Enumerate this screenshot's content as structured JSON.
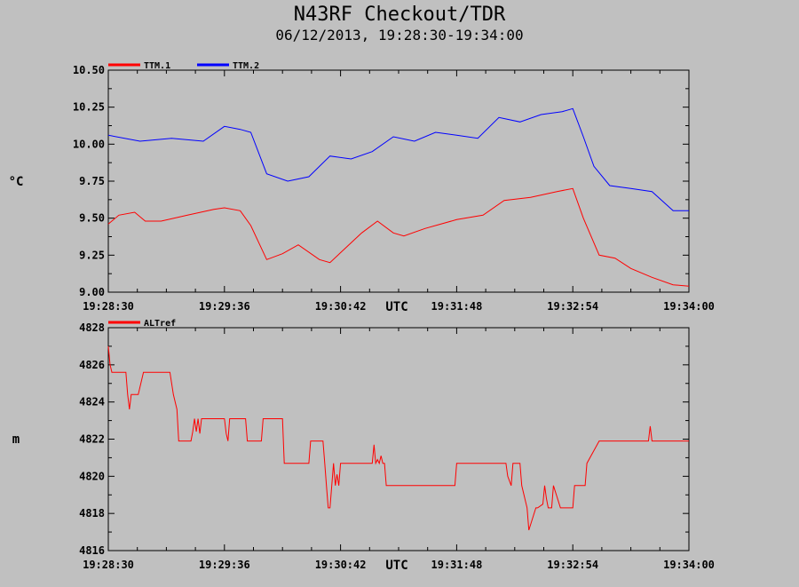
{
  "page": {
    "title": "N43RF Checkout/TDR",
    "subtitle": "06/12/2013, 19:28:30-19:34:00"
  },
  "colors": {
    "background": "#c0c0c0",
    "ttm1": "#ff0000",
    "ttm2": "#0000ff",
    "altref": "#ff0000"
  },
  "chart_data": [
    {
      "type": "line",
      "ylabel": "°C",
      "xlabel": "UTC",
      "ylim": [
        9.0,
        10.5
      ],
      "yticks": [
        "9.00",
        "9.25",
        "9.50",
        "9.75",
        "10.00",
        "10.25",
        "10.50"
      ],
      "xlim": [
        "19:28:30",
        "19:34:00"
      ],
      "xticks": [
        "19:28:30",
        "19:29:36",
        "19:30:42",
        "19:31:48",
        "19:32:54",
        "19:34:00"
      ],
      "legend": "top-left",
      "series": [
        {
          "name": "TTM.1",
          "color": "#ff0000",
          "x": [
            "19:28:30",
            "19:28:36",
            "19:28:45",
            "19:28:51",
            "19:29:00",
            "19:29:15",
            "19:29:30",
            "19:29:36",
            "19:29:45",
            "19:29:51",
            "19:30:00",
            "19:30:09",
            "19:30:18",
            "19:30:30",
            "19:30:36",
            "19:30:45",
            "19:30:54",
            "19:31:03",
            "19:31:12",
            "19:31:18",
            "19:31:30",
            "19:31:48",
            "19:32:03",
            "19:32:15",
            "19:32:30",
            "19:32:45",
            "19:32:54",
            "19:33:00",
            "19:33:09",
            "19:33:18",
            "19:33:27",
            "19:33:39",
            "19:33:51",
            "19:34:00"
          ],
          "values": [
            9.46,
            9.52,
            9.54,
            9.48,
            9.48,
            9.52,
            9.56,
            9.57,
            9.55,
            9.45,
            9.22,
            9.26,
            9.32,
            9.22,
            9.2,
            9.3,
            9.4,
            9.48,
            9.4,
            9.38,
            9.43,
            9.49,
            9.52,
            9.62,
            9.64,
            9.68,
            9.7,
            9.5,
            9.25,
            9.23,
            9.16,
            9.1,
            9.05,
            9.04
          ]
        },
        {
          "name": "TTM.2",
          "color": "#0000ff",
          "x": [
            "19:28:30",
            "19:28:48",
            "19:29:06",
            "19:29:24",
            "19:29:36",
            "19:29:45",
            "19:29:51",
            "19:30:00",
            "19:30:12",
            "19:30:24",
            "19:30:36",
            "19:30:48",
            "19:31:00",
            "19:31:12",
            "19:31:24",
            "19:31:36",
            "19:31:48",
            "19:32:00",
            "19:32:12",
            "19:32:24",
            "19:32:36",
            "19:32:48",
            "19:32:54",
            "19:33:00",
            "19:33:06",
            "19:33:15",
            "19:33:27",
            "19:33:39",
            "19:33:51",
            "19:34:00"
          ],
          "values": [
            10.06,
            10.02,
            10.04,
            10.02,
            10.12,
            10.1,
            10.08,
            9.8,
            9.75,
            9.78,
            9.92,
            9.9,
            9.95,
            10.05,
            10.02,
            10.08,
            10.06,
            10.04,
            10.18,
            10.15,
            10.2,
            10.22,
            10.24,
            10.05,
            9.85,
            9.72,
            9.7,
            9.68,
            9.55,
            9.55
          ]
        }
      ]
    },
    {
      "type": "line",
      "ylabel": "m",
      "xlabel": "UTC",
      "ylim": [
        4816,
        4828
      ],
      "yticks": [
        "4816",
        "4818",
        "4820",
        "4822",
        "4824",
        "4826",
        "4828"
      ],
      "xlim": [
        "19:28:30",
        "19:34:00"
      ],
      "xticks": [
        "19:28:30",
        "19:29:36",
        "19:30:42",
        "19:31:48",
        "19:32:54",
        "19:34:00"
      ],
      "legend": "top-left",
      "series": [
        {
          "name": "ALTref",
          "color": "#ff0000",
          "x": [
            "19:28:30",
            "19:28:31",
            "19:28:32",
            "19:28:33",
            "19:28:40",
            "19:28:41",
            "19:28:42",
            "19:28:43",
            "19:28:44",
            "19:28:47",
            "19:28:50",
            "19:28:51",
            "19:29:05",
            "19:29:07",
            "19:29:09",
            "19:29:10",
            "19:29:17",
            "19:29:18",
            "19:29:19",
            "19:29:20",
            "19:29:21",
            "19:29:22",
            "19:29:23",
            "19:29:24",
            "19:29:25",
            "19:29:36",
            "19:29:37",
            "19:29:38",
            "19:29:39",
            "19:29:48",
            "19:29:49",
            "19:29:57",
            "19:29:58",
            "19:30:09",
            "19:30:10",
            "19:30:11",
            "19:30:24",
            "19:30:25",
            "19:30:32",
            "19:30:33",
            "19:30:34",
            "19:30:35",
            "19:30:36",
            "19:30:37",
            "19:30:38",
            "19:30:39",
            "19:30:40",
            "19:30:41",
            "19:30:42",
            "19:31:00",
            "19:31:01",
            "19:31:02",
            "19:31:03",
            "19:31:04",
            "19:31:05",
            "19:31:06",
            "19:31:07",
            "19:31:08",
            "19:31:30",
            "19:31:31",
            "19:31:47",
            "19:31:48",
            "19:32:00",
            "19:32:16",
            "19:32:17",
            "19:32:19",
            "19:32:20",
            "19:32:24",
            "19:32:25",
            "19:32:28",
            "19:32:29",
            "19:32:33",
            "19:32:34",
            "19:32:37",
            "19:32:38",
            "19:32:39",
            "19:32:40",
            "19:32:42",
            "19:32:43",
            "19:32:47",
            "19:32:48",
            "19:32:51",
            "19:32:52",
            "19:32:54",
            "19:32:55",
            "19:33:01",
            "19:33:02",
            "19:33:09",
            "19:33:10",
            "19:33:15",
            "19:33:16",
            "19:33:17",
            "19:33:18",
            "19:33:37",
            "19:33:38",
            "19:33:39",
            "19:33:40",
            "19:34:00"
          ],
          "values": [
            4827,
            4826,
            4825.6,
            4825.6,
            4825.6,
            4824.4,
            4823.6,
            4824.4,
            4824.4,
            4824.4,
            4825.6,
            4825.6,
            4825.6,
            4824.4,
            4823.6,
            4821.9,
            4821.9,
            4822.4,
            4823.1,
            4822.4,
            4823.1,
            4822.3,
            4823.1,
            4823.1,
            4823.1,
            4823.1,
            4822.3,
            4821.9,
            4823.1,
            4823.1,
            4821.9,
            4821.9,
            4823.1,
            4823.1,
            4820.7,
            4820.7,
            4820.7,
            4821.9,
            4821.9,
            4820.7,
            4819.5,
            4818.3,
            4818.3,
            4819.5,
            4820.7,
            4819.5,
            4820.1,
            4819.5,
            4820.7,
            4820.7,
            4821.7,
            4820.7,
            4820.9,
            4820.7,
            4821.1,
            4820.7,
            4820.7,
            4819.5,
            4819.5,
            4819.5,
            4819.5,
            4820.7,
            4820.7,
            4820.7,
            4820.0,
            4819.5,
            4820.7,
            4820.7,
            4819.5,
            4818.3,
            4817.1,
            4818.3,
            4818.3,
            4818.5,
            4819.5,
            4818.8,
            4818.3,
            4818.3,
            4819.5,
            4818.3,
            4818.3,
            4818.3,
            4818.3,
            4818.3,
            4819.5,
            4819.5,
            4820.7,
            4821.9,
            4821.9,
            4821.9,
            4821.9,
            4821.9,
            4821.9,
            4821.9,
            4822.7,
            4821.9,
            4821.9,
            4821.9
          ]
        }
      ]
    }
  ]
}
